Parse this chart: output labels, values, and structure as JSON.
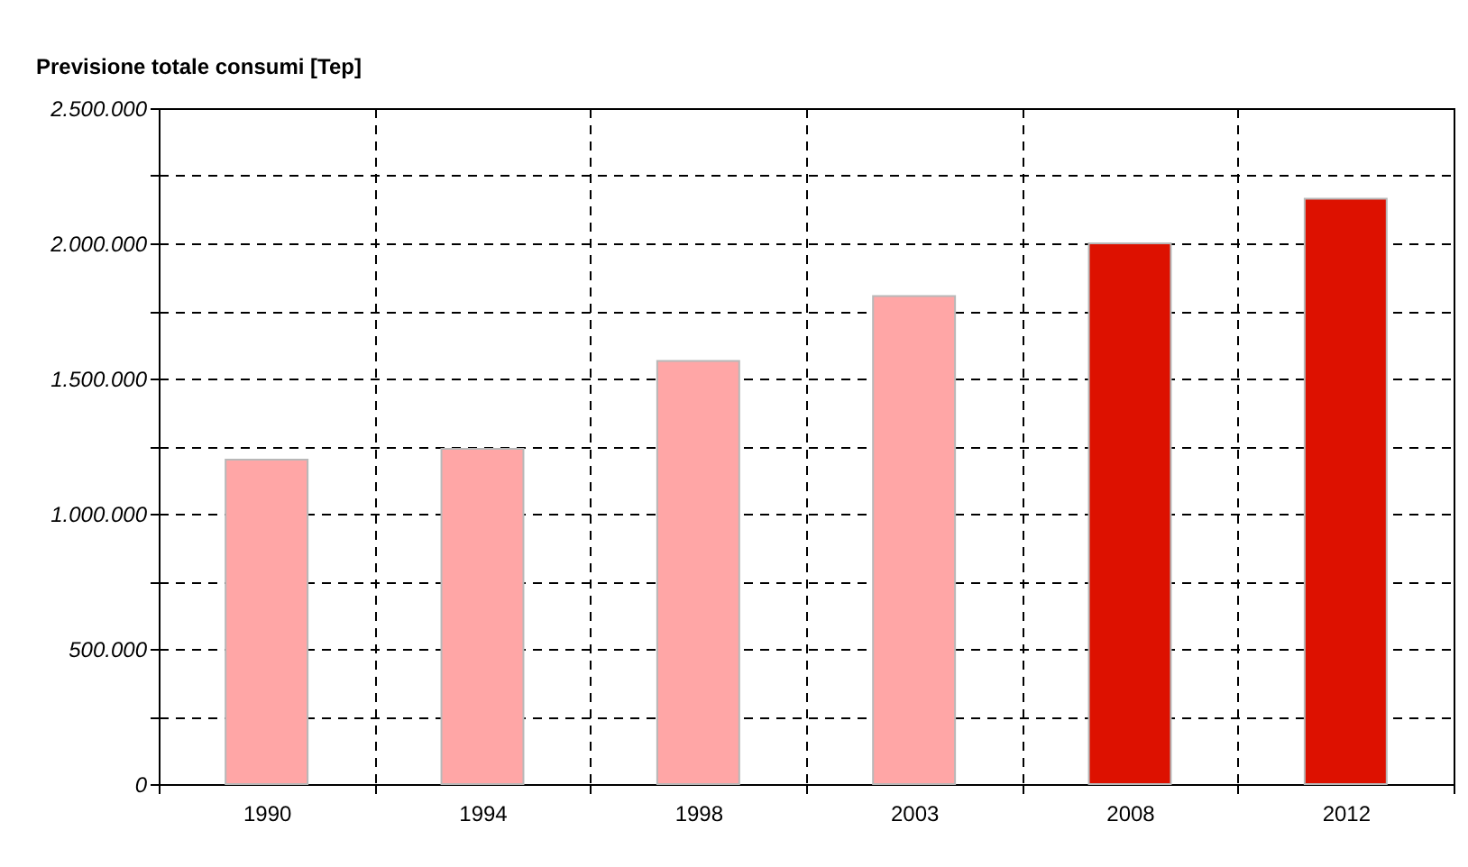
{
  "chart_data": {
    "type": "bar",
    "title": "Previsione totale consumi [Tep]",
    "categories": [
      "1990",
      "1994",
      "1998",
      "2003",
      "2008",
      "2012"
    ],
    "values": [
      1200000,
      1240000,
      1565000,
      1805000,
      2000000,
      2165000
    ],
    "colors": [
      "#ffa6a6",
      "#ffa6a6",
      "#ffa6a6",
      "#ffa6a6",
      "#dd1100",
      "#dd1100"
    ],
    "ylim": [
      0,
      2500000
    ],
    "yticks": [
      0,
      {
        "value": 250000,
        "label": null
      },
      {
        "value": 500000,
        "label": "500.000"
      },
      {
        "value": 750000,
        "label": null
      },
      {
        "value": 1000000,
        "label": "1.000.000"
      },
      {
        "value": 1250000,
        "label": null
      },
      {
        "value": 1500000,
        "label": "1.500.000"
      },
      {
        "value": 1750000,
        "label": null
      },
      {
        "value": 2000000,
        "label": "2.000.000"
      },
      {
        "value": 2250000,
        "label": null
      },
      {
        "value": 2500000,
        "label": "2.500.000"
      }
    ],
    "grid": true
  }
}
